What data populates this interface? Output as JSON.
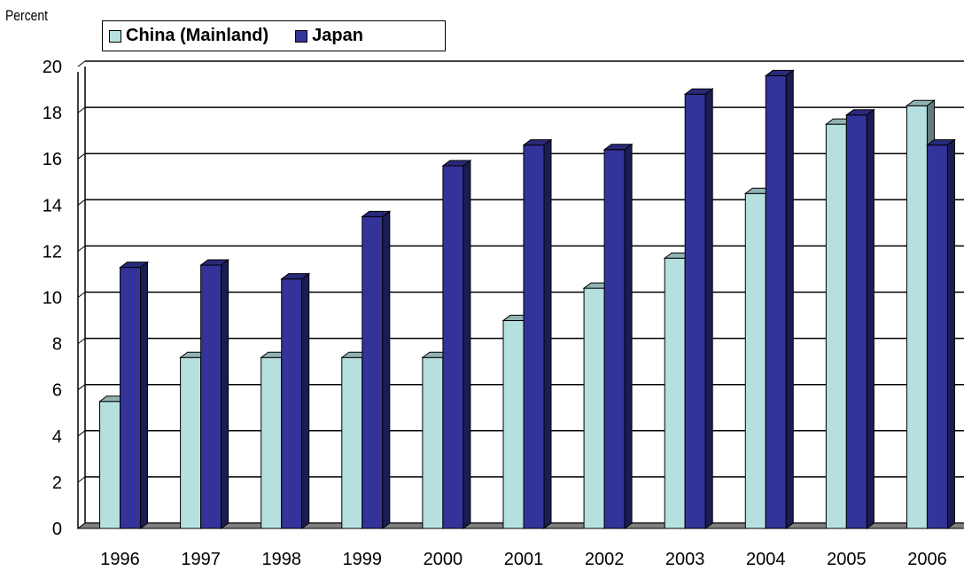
{
  "chart_data": {
    "type": "bar",
    "title": "",
    "ylabel": "Percent",
    "xlabel": "",
    "categories": [
      "1996",
      "1997",
      "1998",
      "1999",
      "2000",
      "2001",
      "2002",
      "2003",
      "2004",
      "2005",
      "2006"
    ],
    "series": [
      {
        "name": "China (Mainland)",
        "color": "#b6e0e0",
        "values": [
          5.5,
          7.4,
          7.4,
          7.4,
          7.4,
          9.0,
          10.4,
          11.7,
          14.5,
          17.5,
          18.3
        ]
      },
      {
        "name": "Japan",
        "color": "#333399",
        "values": [
          11.3,
          11.4,
          10.8,
          13.5,
          15.7,
          16.6,
          16.4,
          18.8,
          19.6,
          17.9,
          16.6
        ]
      }
    ],
    "ylim": [
      0,
      20
    ],
    "yticks": [
      0,
      2,
      4,
      6,
      8,
      10,
      12,
      14,
      16,
      18,
      20
    ],
    "grid": true,
    "legend_position": "top-left",
    "style": "3d-clustered-column"
  }
}
